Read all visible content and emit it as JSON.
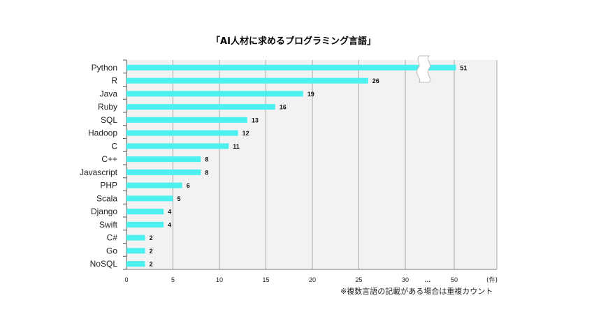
{
  "chart_data": {
    "type": "bar",
    "orientation": "horizontal",
    "title": "「AI人材に求めるプログラミング言語」",
    "categories": [
      "Python",
      "R",
      "Java",
      "Ruby",
      "SQL",
      "Hadoop",
      "C",
      "C++",
      "Javascript",
      "PHP",
      "Scala",
      "Django",
      "Swift",
      "C#",
      "Go",
      "NoSQL"
    ],
    "values": [
      51,
      26,
      19,
      16,
      13,
      12,
      11,
      8,
      8,
      6,
      5,
      4,
      4,
      2,
      2,
      2
    ],
    "x_ticks": [
      "0",
      "5",
      "10",
      "15",
      "20",
      "25",
      "30",
      "…",
      "50"
    ],
    "axis_break": "…",
    "unit_label": "(件)",
    "note": "※複数言語の記載がある場合は重複カウント",
    "grid": true,
    "colors": {
      "bar": "#4cf0ee",
      "plot_bg": "#f2f2f2",
      "grid": "#a6a6a6"
    }
  }
}
